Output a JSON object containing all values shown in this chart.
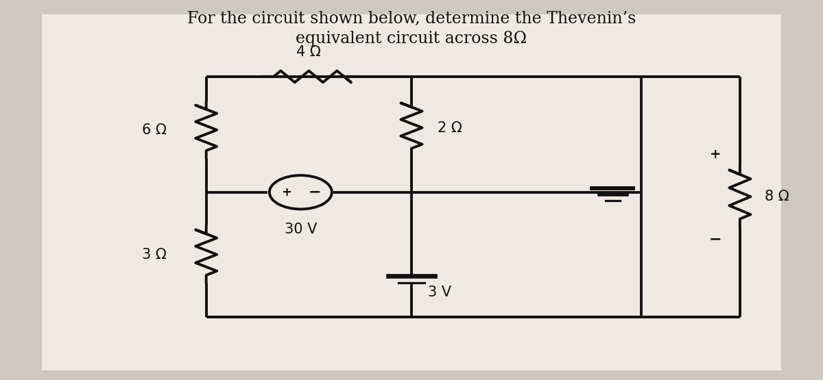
{
  "title_line1": "For the circuit shown below, determine the Thevenin’s",
  "title_line2": "equivalent circuit across 8Ω",
  "bg_color": "#cdc9c0",
  "panel_color": "#eeeae3",
  "line_color": "#111111",
  "lw": 2.8,
  "label_6": "6 Ω",
  "label_3": "3 Ω",
  "label_4": "4 Ω",
  "label_2": "2 Ω",
  "label_8": "8 Ω",
  "label_30": "30 V",
  "label_3v": "3 V",
  "font_size_title": 17,
  "font_size_label": 15,
  "xL": 2.5,
  "xM": 5.0,
  "xR": 7.8,
  "xFR": 9.0,
  "yT": 6.8,
  "yMid": 4.2,
  "yB": 1.4
}
